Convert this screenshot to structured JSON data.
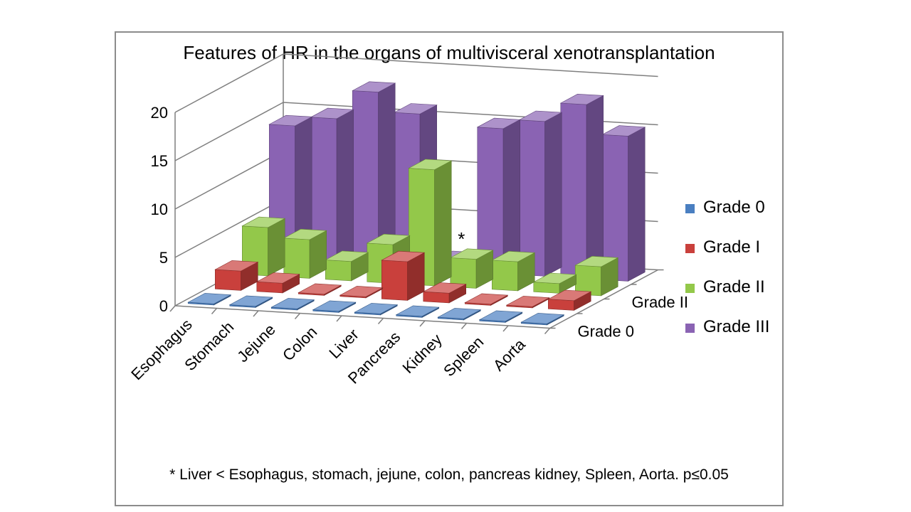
{
  "title": "Features of HR in the organs of multivisceral xenotransplantation",
  "footnote": "* Liver < Esophagus, stomach, jejune, colon, pancreas kidney, Spleen, Aorta. p≤0.05",
  "annotation": "*",
  "colors": {
    "grade0": "#4a7fc1",
    "grade1": "#c9403c",
    "grade2": "#93c84a",
    "grade3": "#8a63b3"
  },
  "chart_data": {
    "type": "bar",
    "categories": [
      "Esophagus",
      "Stomach",
      "Jejune",
      "Colon",
      "Liver",
      "Pancreas",
      "Kidney",
      "Spleen",
      "Aorta"
    ],
    "series": [
      {
        "name": "Grade 0",
        "values": [
          0,
          0,
          0,
          0,
          0,
          0,
          0,
          0,
          0
        ]
      },
      {
        "name": "Grade I",
        "values": [
          2,
          1,
          0,
          0,
          4,
          1,
          0,
          0,
          1
        ]
      },
      {
        "name": "Grade II",
        "values": [
          5,
          4,
          2,
          4,
          12,
          3,
          3,
          1,
          3
        ]
      },
      {
        "name": "Grade III",
        "values": [
          14,
          15,
          18,
          16,
          1,
          15,
          16,
          18,
          15
        ]
      }
    ],
    "depth_tick_labels": [
      "Grade 0",
      "Grade II"
    ],
    "yticks": [
      0,
      5,
      10,
      15,
      20
    ],
    "ylim": [
      0,
      20
    ],
    "grid": true,
    "legend": "right",
    "chart_kind": "3d-column"
  }
}
